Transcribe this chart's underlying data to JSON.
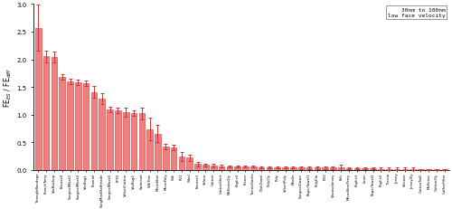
{
  "categories": [
    "TriangleBandage",
    "FrenchTerry",
    "VacBackup",
    "Encase2",
    "SurgicalMask1",
    "SurgicalMask2",
    "VacBag1",
    "Flannel",
    "SurgMaskSelfmade",
    "SurgicalMask2",
    "FFP2",
    "VelvetCotton",
    "VacBag2",
    "Swimsuit",
    "SilkThin",
    "Microfiber",
    "MicroPoly",
    "Silk",
    "PU1",
    "Wool",
    "Encase1",
    "Velour",
    "Cotton",
    "CottonShirt",
    "Molleton2ly",
    "Poplin3",
    "Fleece",
    "TennisSocks",
    "DishTowel",
    "Poly2ly",
    "Poly",
    "VelvetPoly",
    "Muslin",
    "SurgicalGown",
    "PaperTowel1",
    "PolyEla",
    "PU2",
    "ViscoseJersey",
    "Felt",
    "MicrofiberTerry",
    "Poplin1",
    "Linen",
    "PaperTowel2",
    "Poplin2",
    "Tissue",
    "Jersey",
    "Viscose",
    "Jersey2ly",
    "CottonTwill",
    "Molleton",
    "Cotton2ly",
    "CoffeeFilter"
  ],
  "values": [
    2.57,
    2.05,
    2.04,
    1.68,
    1.6,
    1.58,
    1.56,
    1.41,
    1.29,
    1.1,
    1.08,
    1.05,
    1.03,
    1.02,
    0.74,
    0.66,
    0.42,
    0.41,
    0.24,
    0.22,
    0.11,
    0.09,
    0.08,
    0.07,
    0.06,
    0.06,
    0.06,
    0.06,
    0.05,
    0.05,
    0.05,
    0.05,
    0.05,
    0.04,
    0.04,
    0.04,
    0.04,
    0.04,
    0.04,
    0.03,
    0.03,
    0.03,
    0.03,
    0.02,
    0.02,
    0.02,
    0.02,
    0.02,
    0.01,
    0.01,
    0.01,
    0.01
  ],
  "errors": [
    0.42,
    0.1,
    0.1,
    0.05,
    0.05,
    0.05,
    0.05,
    0.1,
    0.1,
    0.05,
    0.05,
    0.08,
    0.05,
    0.1,
    0.2,
    0.15,
    0.05,
    0.05,
    0.08,
    0.05,
    0.04,
    0.03,
    0.03,
    0.03,
    0.02,
    0.02,
    0.02,
    0.02,
    0.02,
    0.02,
    0.02,
    0.02,
    0.02,
    0.02,
    0.02,
    0.02,
    0.02,
    0.02,
    0.06,
    0.02,
    0.02,
    0.02,
    0.02,
    0.02,
    0.02,
    0.02,
    0.02,
    0.02,
    0.01,
    0.01,
    0.01,
    0.01
  ],
  "bar_color": "#f08080",
  "bar_edge_color": "#cc3333",
  "error_color": "#cc3333",
  "ylabel": "FE$_{ES}$ / FE$_{diff}$",
  "ylim": [
    0,
    3.0
  ],
  "yticks": [
    0.0,
    0.5,
    1.0,
    1.5,
    2.0,
    2.5,
    3.0
  ],
  "legend_text": "30nm to 100nm\nlow face velocity",
  "background_color": "#ffffff",
  "figure_width": 5.0,
  "figure_height": 2.32
}
